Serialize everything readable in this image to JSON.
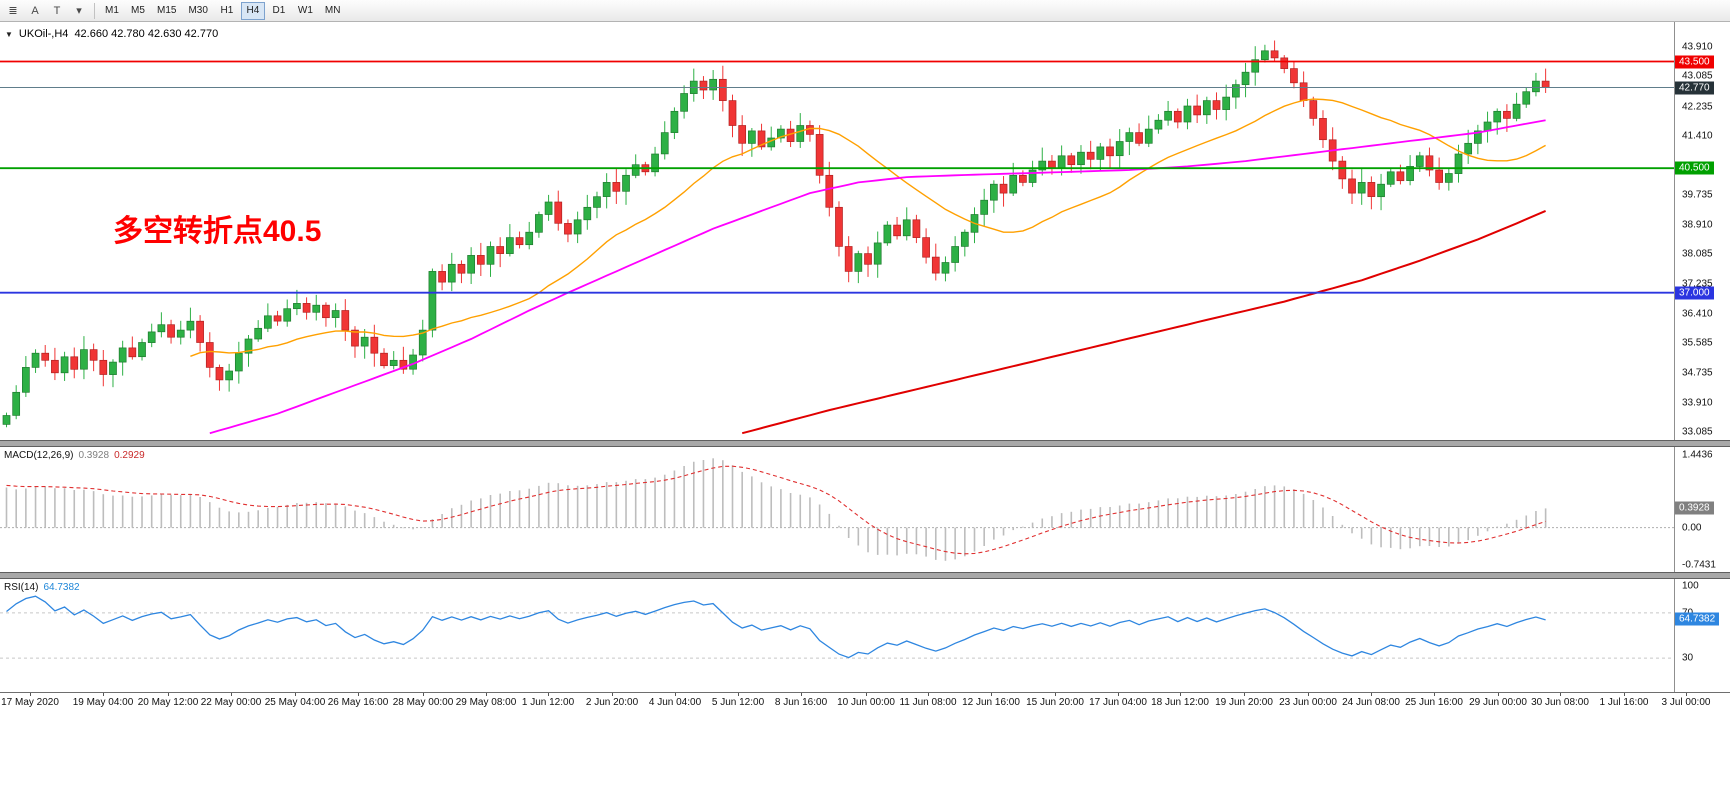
{
  "toolbar": {
    "icons": [
      {
        "name": "chart-lines",
        "glyph": "≣"
      },
      {
        "name": "text-annotation",
        "glyph": "A"
      },
      {
        "name": "type-tool",
        "glyph": "T"
      },
      {
        "name": "chart-type-dropdown",
        "glyph": "▾"
      }
    ],
    "timeframes": [
      "M1",
      "M5",
      "M15",
      "M30",
      "H1",
      "H4",
      "D1",
      "W1",
      "MN"
    ],
    "active_timeframe": "H4"
  },
  "chart_data": [
    {
      "type": "candlestick",
      "title": "UKOil-,H4",
      "ohlc_display": "42.660 42.780 42.630 42.770",
      "annotation": {
        "text": "多空转折点40.5",
        "color": "#FF0000"
      },
      "ylim": [
        32.86,
        44.61
      ],
      "yticks": [
        "43.910",
        "43.085",
        "42.235",
        "41.410",
        "39.735",
        "38.910",
        "38.085",
        "37.235",
        "36.410",
        "35.585",
        "34.735",
        "33.910",
        "33.085"
      ],
      "hlines": [
        {
          "value": 43.5,
          "label": "43.500",
          "color": "#F00000"
        },
        {
          "value": 40.5,
          "label": "40.500",
          "color": "#00A000"
        },
        {
          "value": 37.0,
          "label": "37.000",
          "color": "#2B35E0"
        }
      ],
      "price_line": {
        "value": 42.77,
        "label": "42.770",
        "line_color": "#607D8B",
        "badge_color": "#263238"
      },
      "candle_up": "#2DB045",
      "candle_up_stroke": "#1E7A2E",
      "candle_down": "#F03535",
      "candle_down_stroke": "#B02020",
      "open_first": 33.3,
      "closes": [
        33.55,
        34.2,
        34.9,
        35.3,
        35.1,
        34.75,
        35.2,
        34.85,
        35.4,
        35.1,
        34.7,
        35.05,
        35.45,
        35.2,
        35.6,
        35.9,
        36.1,
        35.75,
        35.95,
        36.2,
        35.6,
        34.9,
        34.55,
        34.8,
        35.3,
        35.7,
        36.0,
        36.35,
        36.2,
        36.55,
        36.7,
        36.45,
        36.65,
        36.3,
        36.5,
        35.95,
        35.5,
        35.75,
        35.3,
        34.95,
        35.1,
        34.85,
        35.25,
        35.95,
        37.6,
        37.3,
        37.8,
        37.55,
        38.05,
        37.8,
        38.3,
        38.1,
        38.55,
        38.35,
        38.7,
        39.2,
        39.55,
        38.95,
        38.65,
        39.05,
        39.4,
        39.7,
        40.1,
        39.85,
        40.3,
        40.6,
        40.4,
        40.9,
        41.5,
        42.1,
        42.6,
        42.95,
        42.7,
        43.0,
        42.4,
        41.7,
        41.2,
        41.55,
        41.1,
        41.35,
        41.6,
        41.25,
        41.7,
        41.45,
        40.3,
        39.4,
        38.3,
        37.6,
        38.1,
        37.8,
        38.4,
        38.9,
        38.6,
        39.05,
        38.55,
        38.0,
        37.55,
        37.85,
        38.3,
        38.7,
        39.2,
        39.6,
        40.05,
        39.8,
        40.3,
        40.1,
        40.45,
        40.7,
        40.5,
        40.85,
        40.6,
        40.95,
        40.75,
        41.1,
        40.85,
        41.25,
        41.5,
        41.2,
        41.6,
        41.85,
        42.1,
        41.8,
        42.25,
        42.0,
        42.4,
        42.15,
        42.5,
        42.85,
        43.2,
        43.55,
        43.8,
        43.6,
        43.3,
        42.9,
        42.4,
        41.9,
        41.3,
        40.7,
        40.2,
        39.8,
        40.1,
        39.7,
        40.05,
        40.4,
        40.15,
        40.55,
        40.85,
        40.45,
        40.1,
        40.35,
        40.9,
        41.2,
        41.55,
        41.8,
        42.1,
        41.9,
        42.3,
        42.65,
        42.95,
        42.77
      ],
      "ma": {
        "fast_color": "#FFA000",
        "fast_period": 20,
        "mid_color": "#FF00FF",
        "mid_points": [
          [
            21,
            33.05
          ],
          [
            28,
            33.6
          ],
          [
            35,
            34.3
          ],
          [
            42,
            35.0
          ],
          [
            48,
            35.7
          ],
          [
            54,
            36.5
          ],
          [
            58,
            37.0
          ],
          [
            63,
            37.6
          ],
          [
            68,
            38.2
          ],
          [
            73,
            38.8
          ],
          [
            78,
            39.3
          ],
          [
            83,
            39.8
          ],
          [
            88,
            40.1
          ],
          [
            93,
            40.25
          ],
          [
            98,
            40.3
          ],
          [
            104,
            40.35
          ],
          [
            110,
            40.4
          ],
          [
            116,
            40.45
          ],
          [
            122,
            40.55
          ],
          [
            128,
            40.7
          ],
          [
            134,
            40.9
          ],
          [
            140,
            41.1
          ],
          [
            146,
            41.3
          ],
          [
            152,
            41.5
          ],
          [
            156,
            41.7
          ],
          [
            159,
            41.85
          ]
        ],
        "slow_color": "#E00000",
        "slow_points": [
          [
            76,
            33.05
          ],
          [
            85,
            33.7
          ],
          [
            95,
            34.35
          ],
          [
            105,
            35.0
          ],
          [
            115,
            35.65
          ],
          [
            125,
            36.3
          ],
          [
            132,
            36.75
          ],
          [
            140,
            37.35
          ],
          [
            146,
            37.9
          ],
          [
            152,
            38.5
          ],
          [
            156,
            38.95
          ],
          [
            159,
            39.3
          ]
        ]
      }
    },
    {
      "type": "macd",
      "label": "MACD(12,26,9)",
      "value_main": "0.3928",
      "value_signal": "0.2929",
      "params": [
        12,
        26,
        9
      ],
      "ylim": [
        -0.8824,
        1.6026
      ],
      "yticks": [
        "1.4436",
        "0.00",
        "-0.7431"
      ],
      "hist_color": "#BDBDBD",
      "signal_color": "#E03030",
      "zero_line_color": "#AFAFAF",
      "badge": {
        "label": "0.3928",
        "value": 0.3928,
        "color": "#808080"
      }
    },
    {
      "type": "rsi",
      "label": "RSI(14)",
      "value": "64.7382",
      "period": 14,
      "ylim": [
        0,
        100
      ],
      "yticks": [
        "100",
        "70",
        "30"
      ],
      "levels": [
        70,
        30
      ],
      "line_color": "#2E86E0",
      "level_color": "#C8C8C8",
      "badge": {
        "label": "64.7382",
        "value": 64.7382,
        "color": "#2E86E0"
      }
    }
  ],
  "time_axis": {
    "labels": [
      [
        "17 May 2020",
        30
      ],
      [
        "19 May 04:00",
        103
      ],
      [
        "20 May 12:00",
        168
      ],
      [
        "22 May 00:00",
        231
      ],
      [
        "25 May 04:00",
        295
      ],
      [
        "26 May 16:00",
        358
      ],
      [
        "28 May 00:00",
        423
      ],
      [
        "29 May 08:00",
        486
      ],
      [
        "1 Jun 12:00",
        548
      ],
      [
        "2 Jun 20:00",
        612
      ],
      [
        "4 Jun 04:00",
        675
      ],
      [
        "5 Jun 12:00",
        738
      ],
      [
        "8 Jun 16:00",
        801
      ],
      [
        "10 Jun 00:00",
        866
      ],
      [
        "11 Jun 08:00",
        928
      ],
      [
        "12 Jun 16:00",
        991
      ],
      [
        "15 Jun 20:00",
        1055
      ],
      [
        "17 Jun 04:00",
        1118
      ],
      [
        "18 Jun 12:00",
        1180
      ],
      [
        "19 Jun 20:00",
        1244
      ],
      [
        "23 Jun 00:00",
        1308
      ],
      [
        "24 Jun 08:00",
        1371
      ],
      [
        "25 Jun 16:00",
        1434
      ],
      [
        "29 Jun 00:00",
        1498
      ],
      [
        "30 Jun 08:00",
        1560
      ],
      [
        "1 Jul 16:00",
        1624
      ],
      [
        "3 Jul 00:00",
        1686
      ]
    ]
  }
}
